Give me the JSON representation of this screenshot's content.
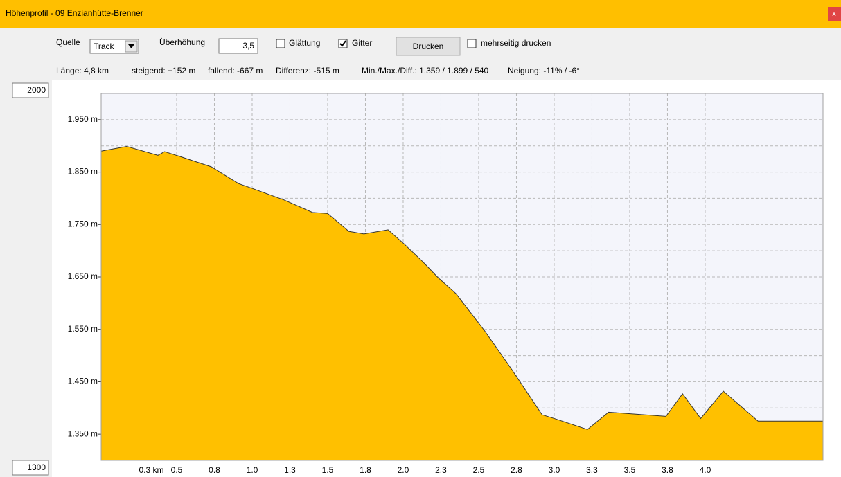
{
  "window": {
    "title": "Höhenprofil - 09 Enzianhütte-Brenner",
    "close": "x"
  },
  "toolbar": {
    "source_label": "Quelle",
    "source_value": "Track",
    "exaggeration_label": "Überhöhung",
    "exaggeration_value": "3,5",
    "smoothing": {
      "label": "Glättung",
      "checked": false
    },
    "grid_toggle": {
      "label": "Gitter",
      "checked": true
    },
    "print_button": "Drucken",
    "multipage": {
      "label": "mehrseitig drucken",
      "checked": false
    }
  },
  "stats": [
    "Länge: 4,8 km",
    "steigend: +152 m",
    "fallend: -667 m",
    "Differenz: -515 m",
    "Min./Max./Diff.: 1.359 / 1.899 / 540",
    "Neigung: -11% / -6°"
  ],
  "chart_data": {
    "type": "area",
    "color": "#ffc000",
    "x": [
      0,
      0.17,
      0.376,
      0.42,
      0.52,
      0.73,
      0.91,
      1.0,
      1.21,
      1.4,
      1.5,
      1.64,
      1.74,
      1.9,
      2.01,
      2.13,
      2.23,
      2.35,
      2.54,
      2.72,
      2.92,
      3.0,
      3.22,
      3.36,
      3.55,
      3.74,
      3.85,
      3.97,
      4.12,
      4.35,
      4.78
    ],
    "values": [
      1890,
      1899,
      1882,
      1889,
      1880,
      1860,
      1828,
      1819,
      1797,
      1773,
      1771,
      1737,
      1732,
      1740,
      1712,
      1679,
      1649,
      1618,
      1547,
      1473,
      1387,
      1380,
      1359,
      1392,
      1388,
      1384,
      1427,
      1380,
      1432,
      1375,
      1375
    ],
    "xlim": [
      0,
      4.78
    ],
    "ylim": [
      1300,
      2000
    ],
    "xticks": [
      {
        "value": 0.25,
        "label": "0.3 km"
      },
      0.5,
      {
        "value": 0.75,
        "label": "0.8"
      },
      {
        "value": 1.0,
        "label": "1.0"
      },
      {
        "value": 1.25,
        "label": "1.3"
      },
      1.5,
      {
        "value": 1.75,
        "label": "1.8"
      },
      {
        "value": 2.0,
        "label": "2.0"
      },
      {
        "value": 2.25,
        "label": "2.3"
      },
      2.5,
      {
        "value": 2.75,
        "label": "2.8"
      },
      {
        "value": 3.0,
        "label": "3.0"
      },
      {
        "value": 3.25,
        "label": "3.3"
      },
      3.5,
      {
        "value": 3.75,
        "label": "3.8"
      },
      {
        "value": 4.0,
        "label": "4.0"
      }
    ],
    "yticks": [
      {
        "value": 1350,
        "label": "1.350 m"
      },
      {
        "value": 1450,
        "label": "1.450 m"
      },
      {
        "value": 1550,
        "label": "1.550 m"
      },
      {
        "value": 1650,
        "label": "1.650 m"
      },
      {
        "value": 1750,
        "label": "1.750 m"
      },
      {
        "value": 1850,
        "label": "1.850 m"
      },
      {
        "value": 1950,
        "label": "1.950 m"
      }
    ],
    "minor_yticks": [
      1400,
      1500,
      1600,
      1700,
      1800,
      1900
    ],
    "grid": true
  }
}
